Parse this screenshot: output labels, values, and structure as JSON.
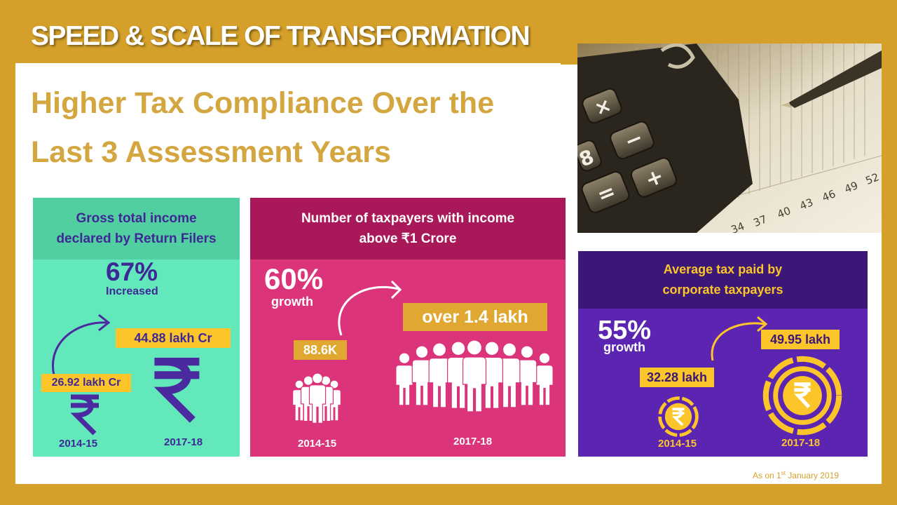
{
  "header": {
    "title": "SPEED & SCALE OF TRANSFORMATION",
    "heading_line1": "Higher Tax Compliance Over the",
    "heading_line2": "Last 3 Assessment Years"
  },
  "photo": {
    "description_icon": "calculator-and-pen-icon",
    "numbers": [
      "34",
      "37",
      "40",
      "43",
      "46",
      "49",
      "52"
    ]
  },
  "cards": {
    "income": {
      "title_line1": "Gross total income",
      "title_line2": "declared by Return Filers",
      "percent": "67%",
      "percent_label": "Increased",
      "old_value": "26.92 lakh Cr",
      "new_value": "44.88 lakh Cr",
      "old_year": "2014-15",
      "new_year": "2017-18",
      "icon": "rupee-icon",
      "colors": {
        "head": "#52cfa0",
        "body": "#63e8bb",
        "accent": "#4b2aa0",
        "tag": "#fcc52a"
      }
    },
    "taxpayers": {
      "title_line1": "Number of taxpayers with income",
      "title_line2": "above ₹1 Crore",
      "percent": "60%",
      "percent_label": "growth",
      "old_value": "88.6K",
      "new_value": "over 1.4 lakh",
      "old_year": "2014-15",
      "new_year": "2017-18",
      "icon": "people-icon",
      "colors": {
        "head": "#a91858",
        "body": "#db347a",
        "tag": "#e0a830"
      }
    },
    "corporate": {
      "title_line1": "Average tax paid by",
      "title_line2": "corporate taxpayers",
      "percent": "55%",
      "percent_label": "growth",
      "old_value": "32.28 lakh",
      "new_value": "49.95 lakh",
      "old_year": "2014-15",
      "new_year": "2017-18",
      "icon": "rupee-coin-icon",
      "colors": {
        "head": "#3b1777",
        "body": "#5b25b2",
        "accent": "#fcc52a"
      }
    }
  },
  "footnote": {
    "prefix": "As on 1",
    "sup": "st",
    "suffix": " January 2019"
  }
}
